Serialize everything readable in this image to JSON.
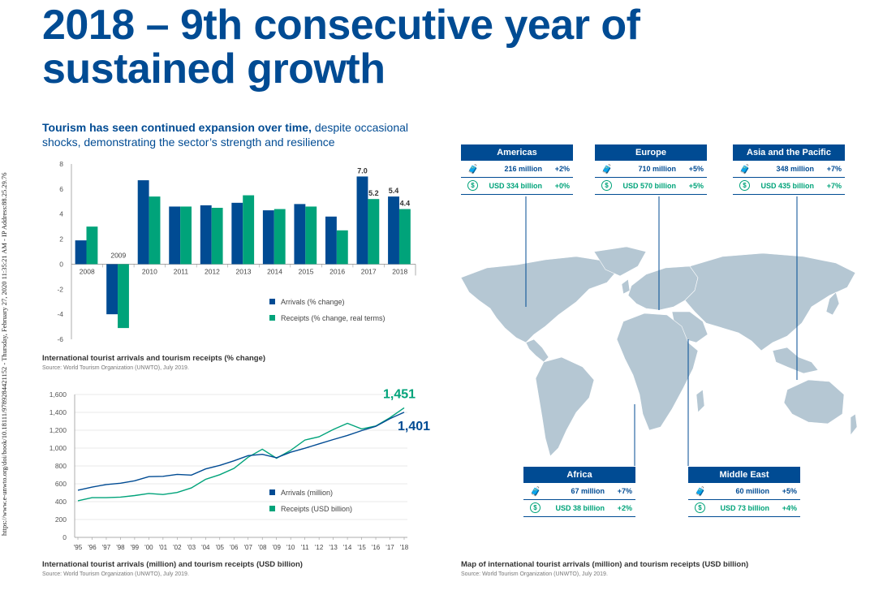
{
  "sidebar_text": "https://www.e-unwto.org/doi/book/10.18111/9789284421152 - Thursday, February 27, 2020 11:35:21 AM - IP Address:88.25.29.76",
  "title_line1": "2018 – 9th consecutive year of",
  "title_line2": "sustained growth",
  "subtitle_bold": "Tourism has seen continued expansion over time,",
  "subtitle_rest": " despite occasional shocks, demonstrating the sector’s strength and resilience",
  "colors": {
    "arrivals": "#004b93",
    "receipts": "#00a37a",
    "map": "#b5c7d3",
    "title": "#004b93"
  },
  "chart_data": [
    {
      "type": "bar",
      "categories": [
        "2008",
        "2009",
        "2010",
        "2011",
        "2012",
        "2013",
        "2014",
        "2015",
        "2016",
        "2017",
        "2018"
      ],
      "series": [
        {
          "name": "Arrivals (% change)",
          "values": [
            1.9,
            -4.0,
            6.7,
            4.6,
            4.7,
            4.9,
            4.3,
            4.8,
            3.8,
            7.0,
            5.4
          ]
        },
        {
          "name": "Receipts (% change, real terms)",
          "values": [
            3.0,
            -5.1,
            5.4,
            4.6,
            4.5,
            5.5,
            4.4,
            4.6,
            2.7,
            5.2,
            4.4
          ]
        }
      ],
      "data_labels": [
        {
          "category": "2017",
          "series": "Arrivals (% change)",
          "text": "7.0"
        },
        {
          "category": "2017",
          "series": "Receipts (% change, real terms)",
          "text": "5.2"
        },
        {
          "category": "2018",
          "series": "Arrivals (% change)",
          "text": "5.4"
        },
        {
          "category": "2018",
          "series": "Receipts (% change, real terms)",
          "text": "4.4"
        }
      ],
      "yticks": [
        "8",
        "6",
        "4",
        "2",
        "0",
        "-2",
        "-4",
        "-6"
      ],
      "ylim": [
        -6,
        8
      ],
      "grid": false,
      "legend_position": "bottom-right",
      "caption": "International tourist arrivals and tourism receipts (% change)",
      "source": "Source: World Tourism Organization (UNWTO), July 2019."
    },
    {
      "type": "line",
      "x": [
        "'95",
        "'96",
        "'97",
        "'98",
        "'99",
        "'00",
        "'01",
        "'02",
        "'03",
        "'04",
        "'05",
        "'06",
        "'07",
        "'08",
        "'09",
        "'10",
        "'11",
        "'12",
        "'13",
        "'14",
        "'15",
        "'16",
        "'17",
        "'18"
      ],
      "series": [
        {
          "name": "Arrivals (million)",
          "values": [
            528,
            563,
            592,
            606,
            634,
            680,
            684,
            705,
            697,
            766,
            806,
            857,
            915,
            930,
            892,
            954,
            998,
            1047,
            1095,
            1142,
            1195,
            1244,
            1330,
            1401
          ]
        },
        {
          "name": "Receipts (USD billion)",
          "values": [
            410,
            445,
            445,
            451,
            468,
            492,
            480,
            503,
            554,
            650,
            702,
            773,
            897,
            987,
            886,
            975,
            1090,
            1126,
            1208,
            1277,
            1215,
            1247,
            1340,
            1451
          ]
        }
      ],
      "end_labels": [
        {
          "series": "Receipts (USD billion)",
          "text": "1,451"
        },
        {
          "series": "Arrivals (million)",
          "text": "1,401"
        }
      ],
      "yticks": [
        "1,600",
        "1,400",
        "1,200",
        "1,000",
        "800",
        "600",
        "400",
        "200",
        "0"
      ],
      "ylim": [
        0,
        1600
      ],
      "grid": true,
      "legend_position": "bottom-right",
      "caption": "International tourist arrivals (million) and tourism receipts (USD billion)",
      "source": "Source: World Tourism Organization (UNWTO), July 2019."
    }
  ],
  "map": {
    "caption": "Map of international tourist arrivals (million) and tourism receipts (USD billion)",
    "source": "Source: World Tourism Organization (UNWTO), July 2019.",
    "regions": [
      {
        "name": "Americas",
        "arrivals": "216 million",
        "arrivals_change": "+2%",
        "receipts": "USD  334 billion",
        "receipts_change": "+0%"
      },
      {
        "name": "Europe",
        "arrivals": "710 million",
        "arrivals_change": "+5%",
        "receipts": "USD  570 billion",
        "receipts_change": "+5%"
      },
      {
        "name": "Asia and the Pacific",
        "arrivals": "348 million",
        "arrivals_change": "+7%",
        "receipts": "USD  435 billion",
        "receipts_change": "+7%"
      },
      {
        "name": "Africa",
        "arrivals": "67 million",
        "arrivals_change": "+7%",
        "receipts": "USD  38 billion",
        "receipts_change": "+2%"
      },
      {
        "name": "Middle East",
        "arrivals": "60 million",
        "arrivals_change": "+5%",
        "receipts": "USD  73 billion",
        "receipts_change": "+4%"
      }
    ],
    "icons": {
      "arrivals": "traveler-icon",
      "receipts": "dollar-icon"
    }
  }
}
